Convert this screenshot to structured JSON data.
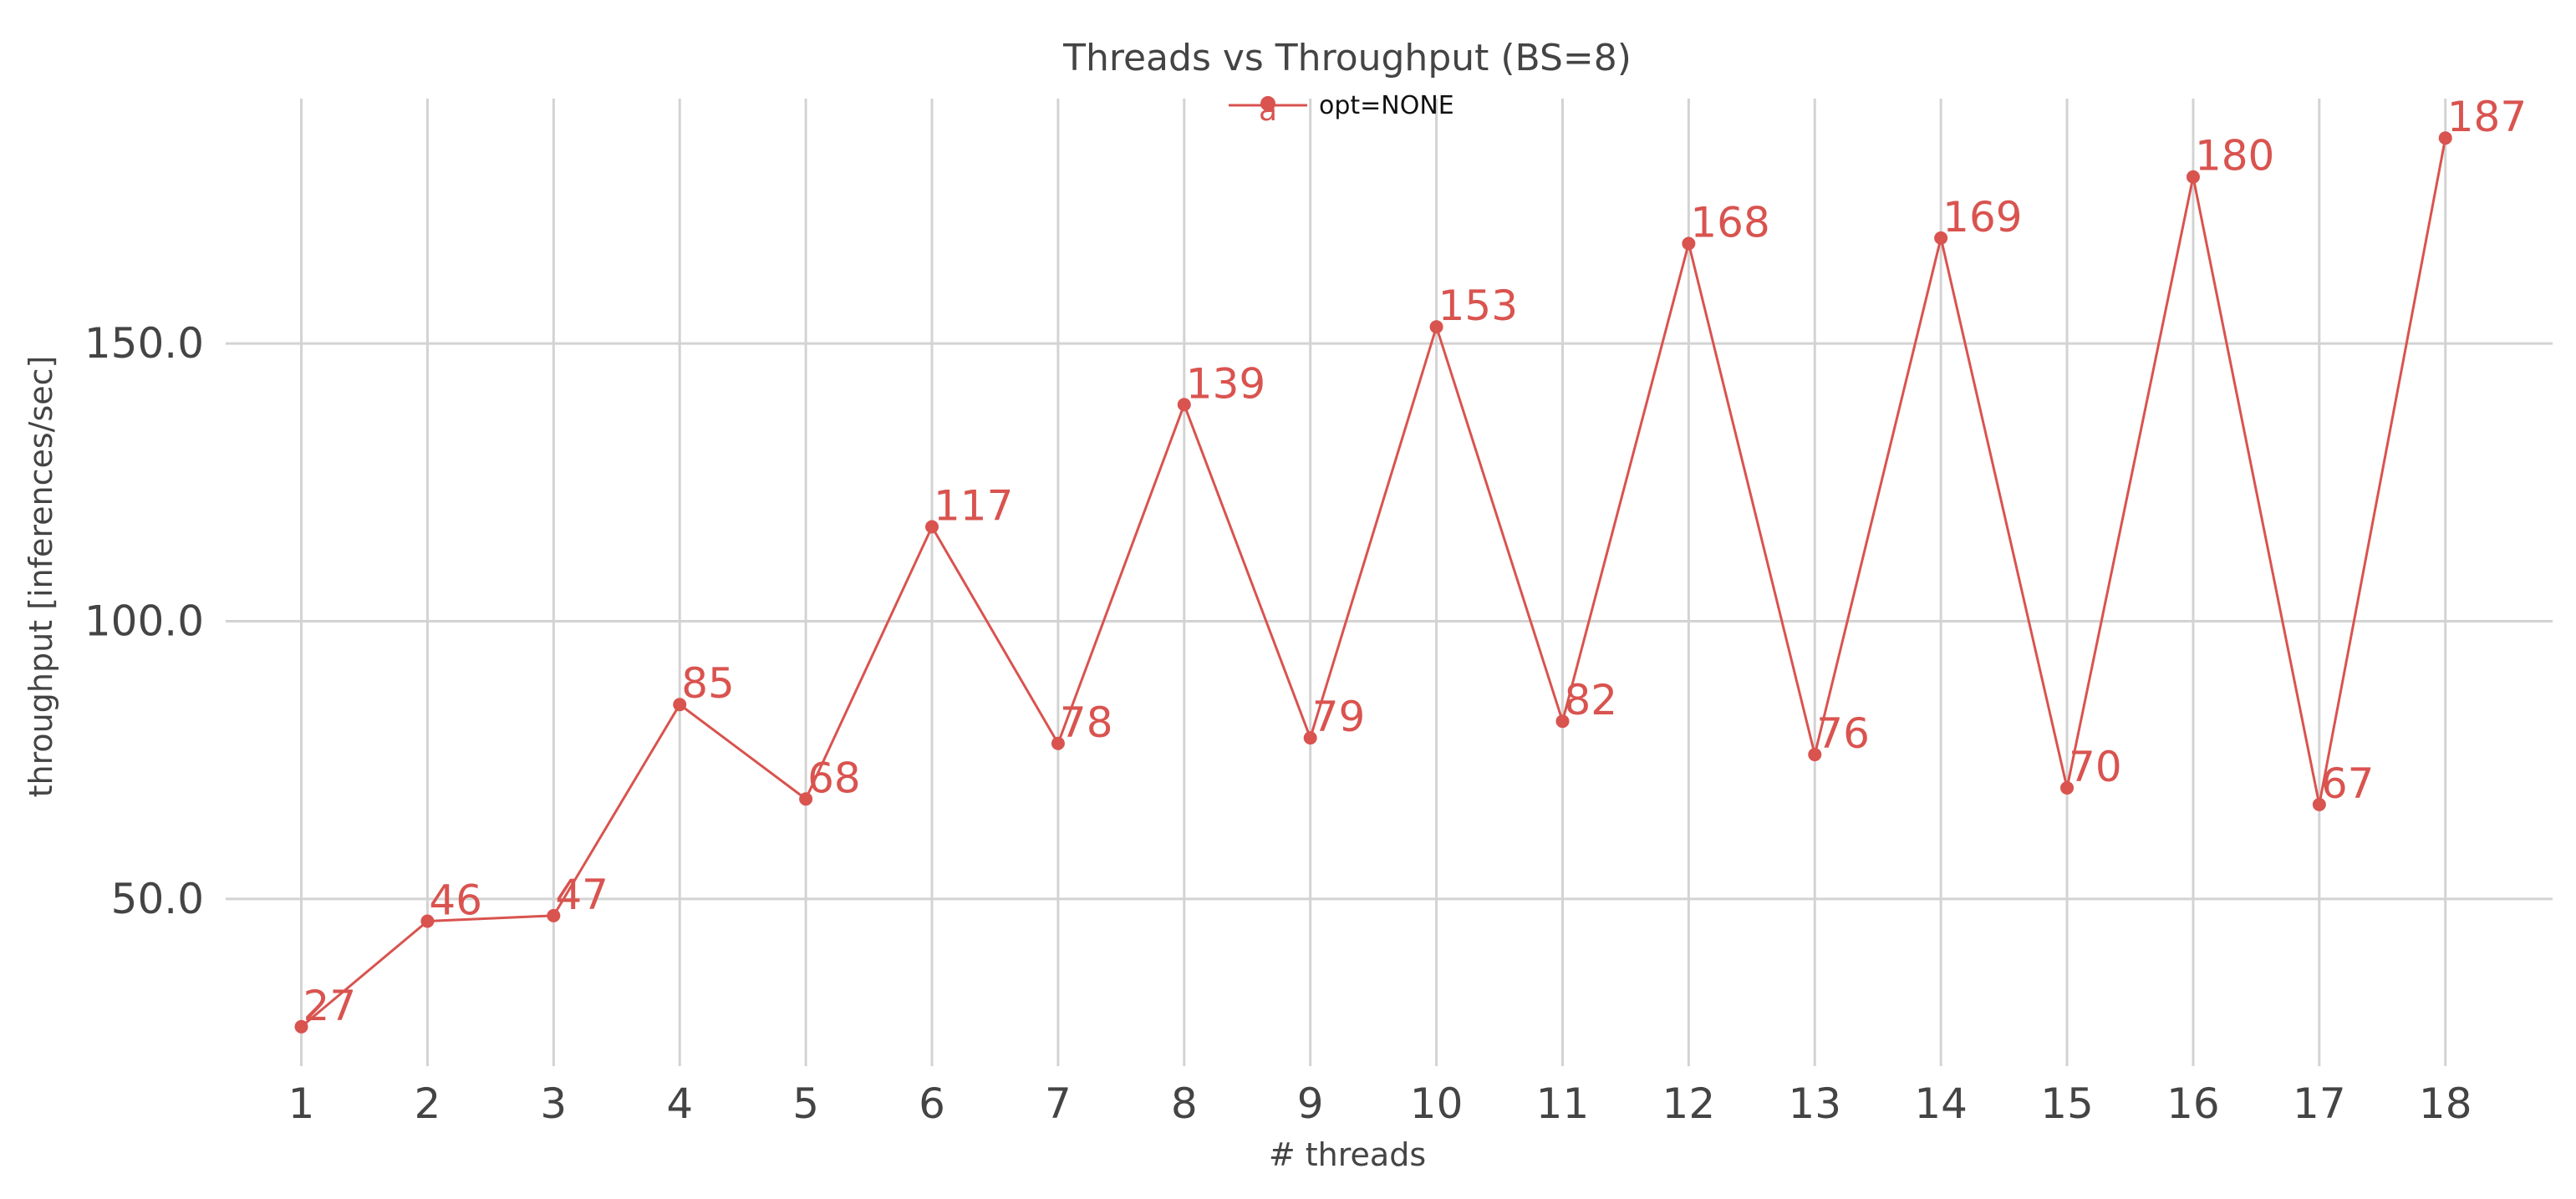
{
  "chart_data": {
    "type": "line",
    "title": "Threads vs Throughput (BS=8)",
    "xlabel": "# threads",
    "ylabel": "throughput [inferences/sec]",
    "x": [
      1,
      2,
      3,
      4,
      5,
      6,
      7,
      8,
      9,
      10,
      11,
      12,
      13,
      14,
      15,
      16,
      17,
      18
    ],
    "series": [
      {
        "name": "opt=NONE",
        "color": "#d9534f",
        "values": [
          27,
          46,
          47,
          85,
          68,
          117,
          78,
          139,
          79,
          153,
          82,
          168,
          76,
          169,
          70,
          180,
          67,
          187
        ],
        "labels": [
          "27",
          "46",
          "47",
          "85",
          "68",
          "117",
          "78",
          "139",
          "79",
          "153",
          "82",
          "168",
          "76",
          "169",
          "70",
          "180",
          "67",
          "187"
        ]
      }
    ],
    "x_ticks": [
      "1",
      "2",
      "3",
      "4",
      "5",
      "6",
      "7",
      "8",
      "9",
      "10",
      "11",
      "12",
      "13",
      "14",
      "15",
      "16",
      "17",
      "18"
    ],
    "y_ticks": [
      50,
      100,
      150
    ],
    "y_tick_labels": [
      "50.0",
      "100.0",
      "150.0"
    ],
    "ylim": [
      19.9,
      194.1
    ],
    "xlim": [
      0.4,
      18.85
    ],
    "grid": true,
    "legend_position": "top-center",
    "legend_marker": "a"
  }
}
